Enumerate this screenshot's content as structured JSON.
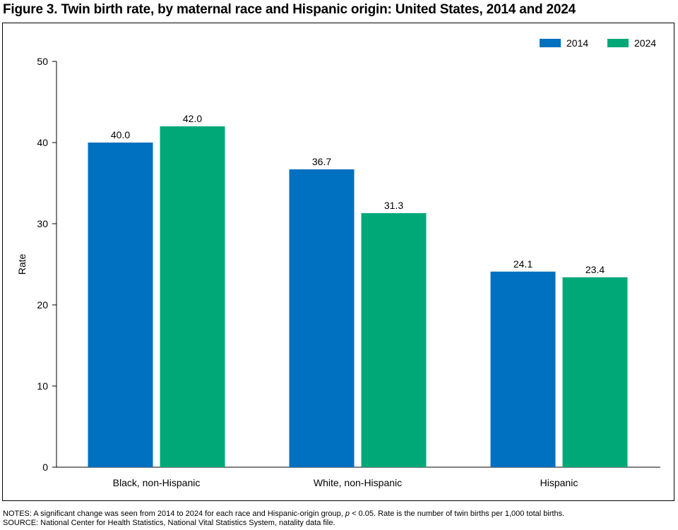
{
  "title": "Figure 3. Twin birth rate, by maternal race and Hispanic origin: United States, 2014 and 2024",
  "notes": {
    "prefix": "NOTES: A significant change was seen from 2014 to 2024 for each race and Hispanic-origin group, ",
    "p_symbol": "p",
    "suffix": " < 0.05. Rate is the number of twin births per 1,000 total births.",
    "source": "SOURCE: National Center for Health Statistics, National Vital Statistics System, natality data file."
  },
  "colors": {
    "2014": "#0070c0",
    "2024": "#00a878"
  },
  "chart_data": {
    "type": "bar",
    "title": "Figure 3. Twin birth rate, by maternal race and Hispanic origin: United States, 2014 and 2024",
    "xlabel": "",
    "ylabel": "Rate",
    "ylim": [
      0,
      50
    ],
    "yticks": [
      0,
      10,
      20,
      30,
      40,
      50
    ],
    "categories": [
      "Black, non-Hispanic",
      "White, non-Hispanic",
      "Hispanic"
    ],
    "series": [
      {
        "name": "2014",
        "values": [
          40.0,
          36.7,
          24.1
        ],
        "labels": [
          "40.0",
          "36.7",
          "24.1"
        ],
        "color": "#0070c0"
      },
      {
        "name": "2024",
        "values": [
          42.0,
          31.3,
          23.4
        ],
        "labels": [
          "42.0",
          "31.3",
          "23.4"
        ],
        "color": "#00a878"
      }
    ],
    "legend": "top-right",
    "grid": false
  }
}
